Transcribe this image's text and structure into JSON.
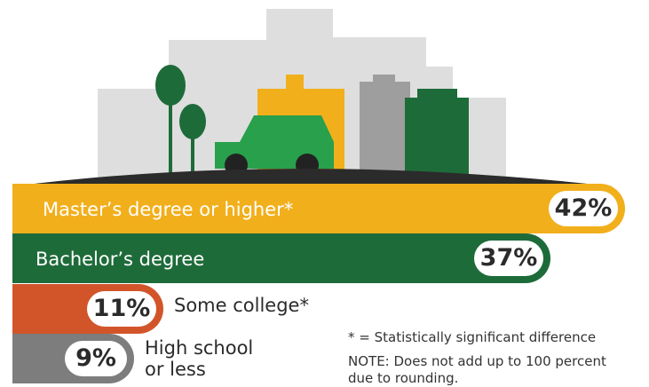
{
  "chart_data": {
    "type": "bar",
    "orientation": "horizontal",
    "categories": [
      "Master’s degree or higher*",
      "Bachelor’s degree",
      "Some college*",
      "High school or less"
    ],
    "values": [
      42,
      37,
      11,
      9
    ],
    "value_labels": [
      "42%",
      "37%",
      "11%",
      "9%"
    ],
    "colors": [
      "#f2af1c",
      "#1e6b3a",
      "#d2552a",
      "#7d7d7d"
    ],
    "legend": "none",
    "grid": false
  },
  "notes": {
    "significance": "* = Statistically significant difference",
    "rounding_line1": "NOTE: Does not add up to 100 percent",
    "rounding_line2": "due to rounding."
  },
  "illustration": {
    "description_icons": [
      "tree-icon",
      "car-icon",
      "building-icon"
    ],
    "colors": {
      "buildings_light": "#dedede",
      "building_yellow": "#f2af1c",
      "building_gray": "#9e9e9e",
      "building_green": "#1e6b3a",
      "car": "#28a04c",
      "tree": "#1e6b3a",
      "ground": "#2b2b2b"
    }
  }
}
